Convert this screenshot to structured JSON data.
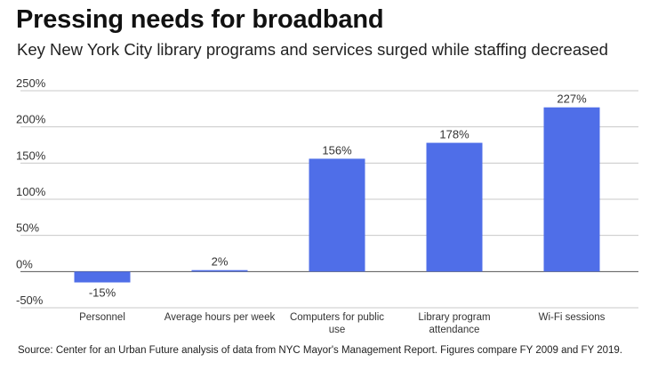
{
  "header": {
    "title": "Pressing needs for broadband",
    "subtitle": "Key New York City library programs and services surged while staffing decreased"
  },
  "footer": {
    "source": "Source: Center for an Urban Future analysis of data from NYC Mayor's Management Report. Figures compare FY 2009 and FY 2019."
  },
  "colors": {
    "bar": "#4f6ee8",
    "grid": "#c8c8c8",
    "zero": "#555555"
  },
  "chart_data": {
    "type": "bar",
    "title": "Pressing needs for broadband",
    "subtitle": "Key New York City library programs and services surged while staffing decreased",
    "categories": [
      [
        "Personnel"
      ],
      [
        "Average hours per week"
      ],
      [
        "Computers for public",
        "use"
      ],
      [
        "Library program",
        "attendance"
      ],
      [
        "Wi-Fi sessions"
      ]
    ],
    "values": [
      -15,
      2,
      156,
      178,
      227
    ],
    "data_labels": [
      "-15%",
      "2%",
      "156%",
      "178%",
      "227%"
    ],
    "yticks": [
      250,
      200,
      150,
      100,
      50,
      0,
      -50
    ],
    "ytick_labels": [
      "250%",
      "200%",
      "150%",
      "100%",
      "50%",
      "0%",
      "-50%"
    ],
    "ylim": [
      -50,
      250
    ],
    "xlabel": "",
    "ylabel": "",
    "grid": true,
    "legend": "none"
  }
}
